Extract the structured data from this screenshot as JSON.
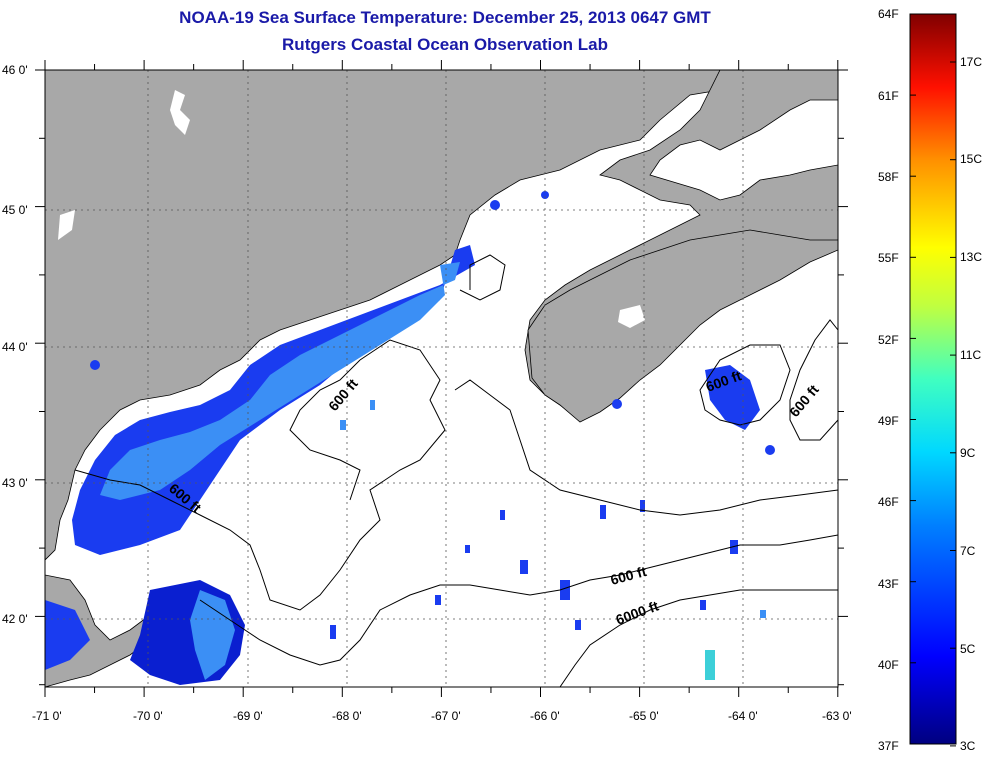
{
  "title": "NOAA-19 Sea Surface Temperature:  December 25, 2013 0647 GMT",
  "subtitle": "Rutgers Coastal Ocean Observation Lab",
  "lat_labels": [
    "46 0'",
    "45 0'",
    "44 0'",
    "43 0'",
    "42 0'"
  ],
  "lon_labels": [
    "-71 0'",
    "-70 0'",
    "-69 0'",
    "-68 0'",
    "-67 0'",
    "-66 0'",
    "-65 0'",
    "-64 0'",
    "-63 0'"
  ],
  "contour_labels": [
    "600 ft",
    "600 ft",
    "600 ft",
    "600 ft",
    "600 ft",
    "6000 ft"
  ],
  "colorbar": {
    "f_labels": [
      "64F",
      "61F",
      "58F",
      "55F",
      "52F",
      "49F",
      "46F",
      "43F",
      "40F",
      "37F"
    ],
    "c_labels": [
      "17C",
      "15C",
      "13C",
      "11C",
      "9C",
      "7C",
      "5C",
      "3C"
    ],
    "colors": [
      "#000080",
      "#0000ff",
      "#00bfff",
      "#00ffcc",
      "#7fff00",
      "#ffff00",
      "#ff8000",
      "#ff0000",
      "#800000"
    ]
  },
  "colors": {
    "land": "#a8a8a8",
    "water": "#ffffff",
    "title": "#1a1aa8"
  }
}
